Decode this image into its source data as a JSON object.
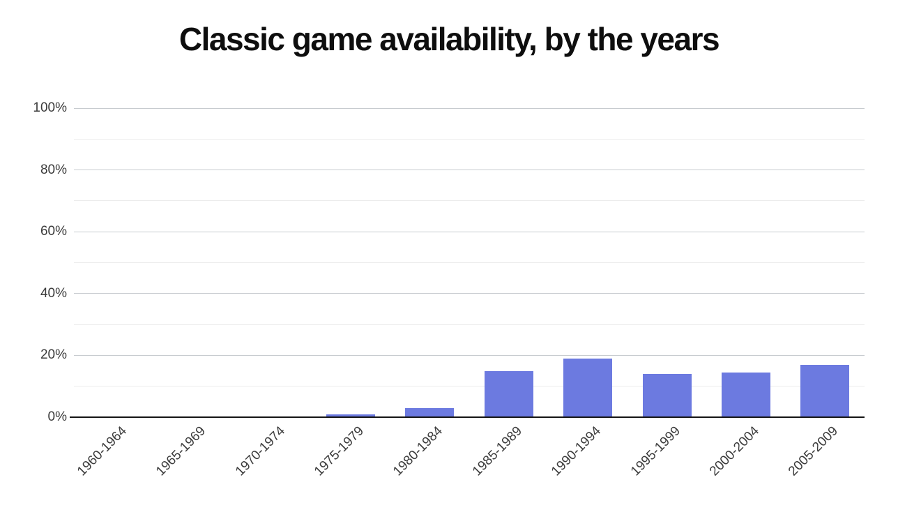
{
  "chart_data": {
    "type": "bar",
    "title": "Classic game availability, by the years",
    "categories": [
      "1960-1964",
      "1965-1969",
      "1970-1974",
      "1975-1979",
      "1980-1984",
      "1985-1989",
      "1990-1994",
      "1995-1999",
      "2000-2004",
      "2005-2009"
    ],
    "values": [
      0,
      0,
      0,
      1,
      3,
      15,
      19,
      14,
      14.5,
      17
    ],
    "xlabel": "",
    "ylabel": "",
    "ylim": [
      0,
      100
    ],
    "y_tick_labels": [
      "0%",
      "20%",
      "40%",
      "60%",
      "80%",
      "100%"
    ],
    "y_major_step_pct": 20,
    "y_minor_step_pct": 10,
    "grid": "horizontal",
    "legend": "none",
    "colors": {
      "bar": "#6c7ae0",
      "major_grid": "#c7cbcf",
      "minor_grid": "#ececec",
      "axis": "#141414",
      "title": "#0e0e0e",
      "tick_label": "#3b3b3b",
      "background": "#ffffff"
    }
  }
}
